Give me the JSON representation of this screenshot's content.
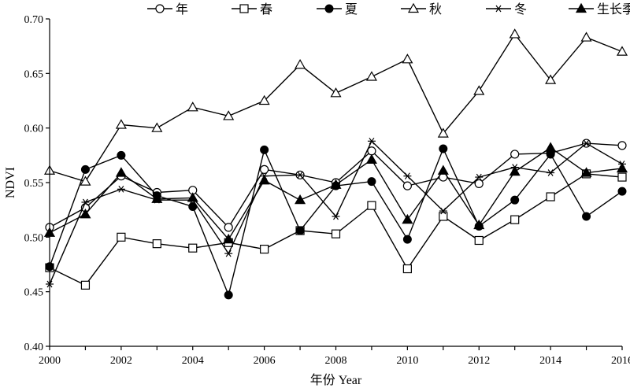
{
  "chart_data": {
    "type": "line",
    "xlabel": "年份 Year",
    "ylabel": "NDVI",
    "xlim": [
      2000,
      2016
    ],
    "ylim": [
      0.4,
      0.7
    ],
    "xticks": [
      "2000",
      "2002",
      "2004",
      "2006",
      "2008",
      "2010",
      "2012",
      "2014",
      "2016"
    ],
    "yticks": [
      "0.40",
      "0.45",
      "0.50",
      "0.55",
      "0.60",
      "0.65",
      "0.70"
    ],
    "grid": false,
    "legend_position": "top",
    "x": [
      2000,
      2001,
      2002,
      2003,
      2004,
      2005,
      2006,
      2007,
      2008,
      2009,
      2010,
      2011,
      2012,
      2013,
      2014,
      2015,
      2016
    ],
    "series": [
      {
        "name": "年",
        "marker": "open-circle",
        "values": [
          0.509,
          0.527,
          0.556,
          0.541,
          0.543,
          0.509,
          0.562,
          0.557,
          0.55,
          0.579,
          0.547,
          0.555,
          0.549,
          0.576,
          0.577,
          0.586,
          0.584
        ]
      },
      {
        "name": "春",
        "marker": "open-square",
        "values": [
          0.472,
          0.456,
          0.5,
          0.494,
          0.49,
          0.495,
          0.489,
          0.506,
          0.503,
          0.529,
          0.471,
          0.519,
          0.497,
          0.516,
          0.537,
          0.558,
          0.555
        ]
      },
      {
        "name": "夏",
        "marker": "filled-circle",
        "values": [
          0.473,
          0.562,
          0.575,
          0.538,
          0.528,
          0.447,
          0.58,
          0.506,
          0.547,
          0.551,
          0.498,
          0.581,
          0.51,
          0.534,
          0.576,
          0.519,
          0.542
        ]
      },
      {
        "name": "秋",
        "marker": "open-triangle",
        "values": [
          0.561,
          0.551,
          0.603,
          0.6,
          0.619,
          0.611,
          0.625,
          0.658,
          0.632,
          0.647,
          0.663,
          0.595,
          0.634,
          0.686,
          0.644,
          0.683,
          0.67
        ]
      },
      {
        "name": "冬",
        "marker": "asterisk",
        "values": [
          0.457,
          0.532,
          0.544,
          0.534,
          0.534,
          0.485,
          0.556,
          0.557,
          0.519,
          0.588,
          0.556,
          0.524,
          0.555,
          0.564,
          0.559,
          0.586,
          0.567
        ]
      },
      {
        "name": "生长季",
        "marker": "filled-triangle",
        "values": [
          0.504,
          0.521,
          0.559,
          0.535,
          0.536,
          0.498,
          0.552,
          0.534,
          0.548,
          0.571,
          0.516,
          0.561,
          0.511,
          0.56,
          0.582,
          0.559,
          0.563
        ]
      }
    ]
  }
}
